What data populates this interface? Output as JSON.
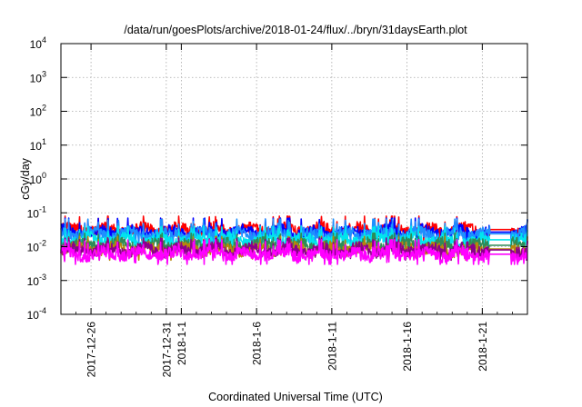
{
  "chart_data": {
    "type": "line",
    "title": "/data/run/goesPlots/archive/2018-01-24/flux/../bryn/31daysEarth.plot",
    "xlabel": "Coordinated Universal Time (UTC)",
    "ylabel": "cGy/day",
    "x_range": [
      "2017-12-24T00:00",
      "2018-01-24T00:00"
    ],
    "ylim": [
      0.0001,
      10000
    ],
    "yscale": "log",
    "grid": true,
    "y_ticks": [
      {
        "value": 0.0001,
        "base": "10",
        "exp": "-4"
      },
      {
        "value": 0.001,
        "base": "10",
        "exp": "-3"
      },
      {
        "value": 0.01,
        "base": "10",
        "exp": "-2"
      },
      {
        "value": 0.1,
        "base": "10",
        "exp": "-1"
      },
      {
        "value": 1,
        "base": "10",
        "exp": "0"
      },
      {
        "value": 10,
        "base": "10",
        "exp": "1"
      },
      {
        "value": 100,
        "base": "10",
        "exp": "2"
      },
      {
        "value": 1000,
        "base": "10",
        "exp": "3"
      },
      {
        "value": 10000,
        "base": "10",
        "exp": "4"
      }
    ],
    "x_ticks": [
      {
        "date": "2017-12-26",
        "label": "2017-12-26"
      },
      {
        "date": "2017-12-31",
        "label": "2017-12-31"
      },
      {
        "date": "2018-01-01",
        "label": "2018-1-1"
      },
      {
        "date": "2018-01-06",
        "label": "2018-1-6"
      },
      {
        "date": "2018-01-11",
        "label": "2018-1-11"
      },
      {
        "date": "2018-01-16",
        "label": "2018-1-16"
      },
      {
        "date": "2018-01-21",
        "label": "2018-1-21"
      }
    ],
    "series": [
      {
        "color": "#ff0000",
        "approx_level": 0.032,
        "approx_min": 0.015,
        "approx_max": 0.08
      },
      {
        "color": "#0000ff",
        "approx_level": 0.027,
        "approx_min": 0.013,
        "approx_max": 0.07
      },
      {
        "color": "#1e90ff",
        "approx_level": 0.024,
        "approx_min": 0.012,
        "approx_max": 0.065
      },
      {
        "color": "#00e5ee",
        "approx_level": 0.016,
        "approx_min": 0.009,
        "approx_max": 0.04
      },
      {
        "color": "#2e8b57",
        "approx_level": 0.011,
        "approx_min": 0.006,
        "approx_max": 0.025
      },
      {
        "color": "#b8860b",
        "approx_level": 0.0085,
        "approx_min": 0.004,
        "approx_max": 0.02
      },
      {
        "color": "#8b008b",
        "approx_level": 0.008,
        "approx_min": 0.004,
        "approx_max": 0.018
      },
      {
        "color": "#ff00ff",
        "approx_level": 0.006,
        "approx_min": 0.003,
        "approx_max": 0.016
      }
    ],
    "data_gap": [
      "2018-01-21T12:00",
      "2018-01-22T22:00"
    ]
  }
}
